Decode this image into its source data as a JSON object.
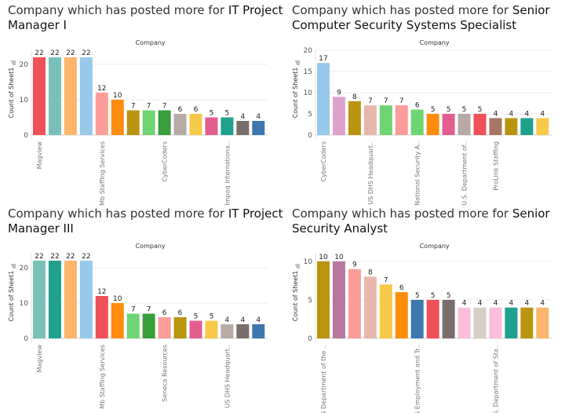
{
  "charts": [
    {
      "title_plain": "Company which has posted more for ",
      "title_bold": "IT Project Manager I",
      "header": "Company",
      "ylabel": "Count of Sheet1",
      "yticks": [
        0,
        10,
        20
      ],
      "ymax": 24,
      "categories": [
        "Magview",
        "",
        "",
        "",
        "Mb Staffing Services",
        "",
        "",
        "",
        "CyberCoders",
        "",
        "",
        "",
        "Impaq Internationa..",
        "",
        ""
      ],
      "values": [
        22,
        22,
        22,
        22,
        12,
        10,
        7,
        7,
        7,
        6,
        6,
        5,
        5,
        4,
        4
      ],
      "colors": [
        "#f05058",
        "#79c1b8",
        "#fcb56a",
        "#96c9ea",
        "#fc9d9a",
        "#ff8c0c",
        "#b9950f",
        "#6fd472",
        "#3a9e3a",
        "#b8aaa5",
        "#f7c949",
        "#e35e8f",
        "#20a08e",
        "#7a6e6c",
        "#3d78ad"
      ]
    },
    {
      "title_plain": "Company which has posted more for ",
      "title_bold": "Senior Computer Security Systems Specialist",
      "header": "Company",
      "ylabel": "Count of Sheet1",
      "yticks": [
        0,
        5,
        10,
        15,
        20
      ],
      "ymax": 20,
      "categories": [
        "CyberCoders",
        "",
        "",
        "US DHS Headquart..",
        "",
        "",
        "National Security A..",
        "",
        "",
        "U.S. Department of..",
        "",
        "ProLink Staffing",
        "",
        "",
        ""
      ],
      "values": [
        17,
        9,
        8,
        7,
        7,
        7,
        6,
        5,
        5,
        5,
        5,
        4,
        4,
        4,
        4
      ],
      "colors": [
        "#96c9ea",
        "#dca2cc",
        "#b9950f",
        "#e6b8ac",
        "#6fd472",
        "#fc9d9a",
        "#6fd472",
        "#ff8c0c",
        "#e35e8f",
        "#b8aaa5",
        "#f05058",
        "#a87563",
        "#b9950f",
        "#20a08e",
        "#f7c949"
      ]
    },
    {
      "title_plain": "Company which has posted more for ",
      "title_bold": "IT Project Manager III",
      "header": "Company",
      "ylabel": "Count of Sheet1",
      "yticks": [
        0,
        10,
        20
      ],
      "ymax": 24,
      "categories": [
        "Magview",
        "",
        "",
        "",
        "Mb Staffing Services",
        "",
        "",
        "",
        "Seneca Resources",
        "",
        "",
        "",
        "US DHS Headquart..",
        "",
        ""
      ],
      "values": [
        22,
        22,
        22,
        22,
        12,
        10,
        7,
        7,
        6,
        6,
        5,
        5,
        4,
        4,
        4
      ],
      "colors": [
        "#79c1b8",
        "#20a08e",
        "#fcb56a",
        "#96c9ea",
        "#f05058",
        "#ff8c0c",
        "#6fd472",
        "#3a9e3a",
        "#fc9d9a",
        "#b9950f",
        "#e35e8f",
        "#f7c949",
        "#b8aaa5",
        "#7a6e6c",
        "#3d78ad"
      ]
    },
    {
      "title_plain": "Company which has posted more for ",
      "title_bold": "Senior Security Analyst",
      "header": "Company",
      "ylabel": "Count of Sheet1",
      "yticks": [
        0,
        5,
        10
      ],
      "ymax": 11,
      "categories": [
        "US Department of the ..",
        "",
        "",
        "",
        "",
        "",
        "US Employment and Tr..",
        "",
        "",
        "",
        "",
        "U.S. Department of Sta..",
        "",
        "",
        ""
      ],
      "values": [
        10,
        10,
        9,
        8,
        7,
        6,
        5,
        5,
        5,
        4,
        4,
        4,
        4,
        4,
        4
      ],
      "colors": [
        "#b9950f",
        "#b8779f",
        "#fc9d9a",
        "#e6b8ac",
        "#f7c949",
        "#ff8c0c",
        "#3d78ad",
        "#f05058",
        "#7a6e6c",
        "#fdbedc",
        "#d9cdc8",
        "#fdbedc",
        "#20a08e",
        "#b9950f",
        "#fcb56a"
      ]
    }
  ]
}
